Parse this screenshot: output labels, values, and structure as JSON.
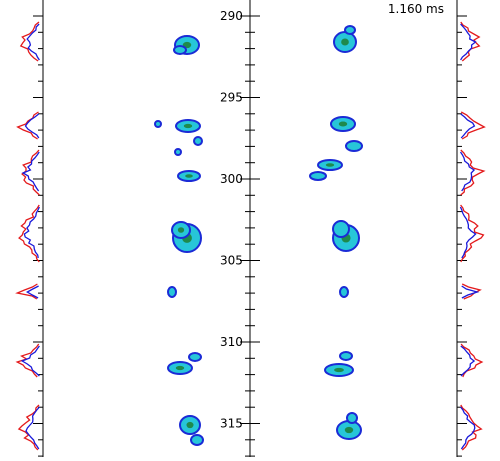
{
  "header": {
    "time_readout": "1.160 ms"
  },
  "axis": {
    "tick_labels": [
      "290",
      "295",
      "300",
      "305",
      "310",
      "315"
    ]
  },
  "colors": {
    "trace_red": "#e41a1c",
    "trace_blue": "#1a1adb",
    "blob_cyan": "#27c6d8",
    "blob_blue": "#1b2bd6",
    "blob_green": "#1f8a4c",
    "axis": "#000000"
  }
}
